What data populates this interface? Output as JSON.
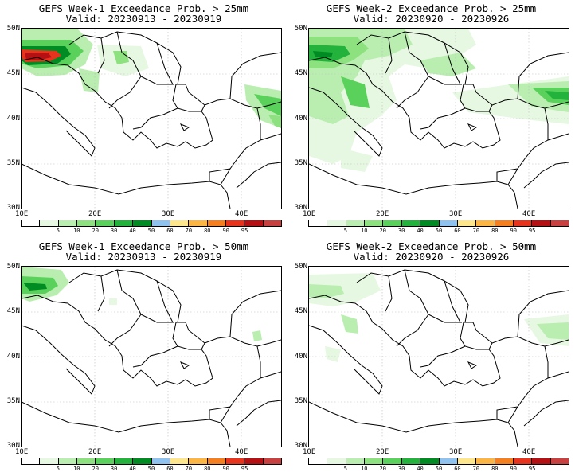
{
  "panels": [
    {
      "title": "GEFS Week-1 Exceedance Prob. > 25mm",
      "valid": "Valid: 20230913 - 20230919"
    },
    {
      "title": "GEFS Week-2 Exceedance Prob. > 25mm",
      "valid": "Valid: 20230920 - 20230926"
    },
    {
      "title": "GEFS Week-1 Exceedance Prob. > 50mm",
      "valid": "Valid: 20230913 - 20230919"
    },
    {
      "title": "GEFS Week-2 Exceedance Prob. > 50mm",
      "valid": "Valid: 20230920 - 20230926"
    }
  ],
  "lat_labels": [
    "50N",
    "45N",
    "40N",
    "35N",
    "30N"
  ],
  "lon_labels": [
    "10E",
    "20E",
    "30E",
    "40E"
  ],
  "colorbar": {
    "labels": [
      "5",
      "10",
      "20",
      "30",
      "40",
      "50",
      "60",
      "70",
      "80",
      "90",
      "95"
    ],
    "colors": [
      "#ffffff",
      "#e6f8e2",
      "#b9eeb0",
      "#8de27f",
      "#5ad15a",
      "#23b33c",
      "#008c23",
      "#8fc2ee",
      "#fde68b",
      "#fcb542",
      "#f57e1f",
      "#e8331d",
      "#b51014",
      "#c94040"
    ]
  }
}
